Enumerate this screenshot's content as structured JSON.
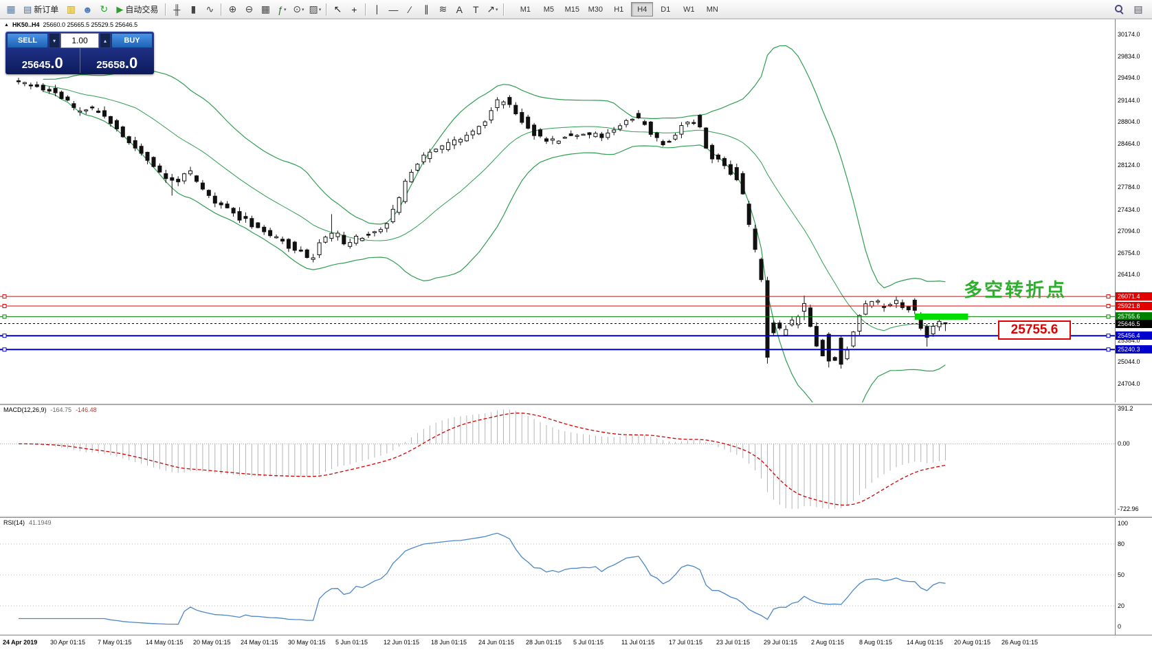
{
  "toolbar": {
    "items": [
      {
        "type": "icon",
        "name": "chart-window-icon",
        "glyph": "▦",
        "color": "#4a7ebb"
      },
      {
        "type": "button",
        "name": "new-order-button",
        "glyph": "▤",
        "color": "#3f6fb5",
        "label": "新订单"
      },
      {
        "type": "icon",
        "name": "chart-profiles-icon",
        "glyph": "▥",
        "color": "#d4a017"
      },
      {
        "type": "icon",
        "name": "profile-icon",
        "glyph": "☻",
        "color": "#4a7ebb"
      },
      {
        "type": "icon",
        "name": "refresh-icon",
        "glyph": "↻",
        "color": "#2f9e2f"
      },
      {
        "type": "button",
        "name": "autotrading-button",
        "glyph": "▶",
        "color": "#2f9e2f",
        "label": "自动交易"
      },
      {
        "type": "sep"
      },
      {
        "type": "icon",
        "name": "bar-chart-icon",
        "glyph": "╫",
        "color": "#444444"
      },
      {
        "type": "icon",
        "name": "candlestick-chart-icon",
        "glyph": "▮",
        "color": "#444444"
      },
      {
        "type": "icon",
        "name": "line-chart-icon",
        "glyph": "∿",
        "color": "#444444"
      },
      {
        "type": "sep"
      },
      {
        "type": "icon",
        "name": "zoom-in-icon",
        "glyph": "⊕",
        "color": "#444444"
      },
      {
        "type": "icon",
        "name": "zoom-out-icon",
        "glyph": "⊖",
        "color": "#444444"
      },
      {
        "type": "icon",
        "name": "tile-windows-icon",
        "glyph": "▦",
        "color": "#444444"
      },
      {
        "type": "icon",
        "name": "indicators-icon",
        "glyph": "ƒ",
        "color": "#2f6e2f",
        "dropdown": true
      },
      {
        "type": "icon",
        "name": "periods-icon",
        "glyph": "⊙",
        "color": "#444444",
        "dropdown": true
      },
      {
        "type": "icon",
        "name": "templates-icon",
        "glyph": "▨",
        "color": "#444444",
        "dropdown": true
      },
      {
        "type": "sep"
      },
      {
        "type": "icon",
        "name": "cursor-icon",
        "glyph": "↖",
        "color": "#222222"
      },
      {
        "type": "icon",
        "name": "crosshair-icon",
        "glyph": "+",
        "color": "#222222"
      },
      {
        "type": "sep"
      },
      {
        "type": "icon",
        "name": "vertical-line-icon",
        "glyph": "∣",
        "color": "#333333"
      },
      {
        "type": "icon",
        "name": "horizontal-line-icon",
        "glyph": "—",
        "color": "#333333"
      },
      {
        "type": "icon",
        "name": "trendline-icon",
        "glyph": "∕",
        "color": "#333333"
      },
      {
        "type": "icon",
        "name": "channel-icon",
        "glyph": "∥",
        "color": "#333333"
      },
      {
        "type": "icon",
        "name": "fibonacci-icon",
        "glyph": "≋",
        "color": "#333333"
      },
      {
        "type": "icon",
        "name": "text-icon",
        "glyph": "A",
        "color": "#333333"
      },
      {
        "type": "icon",
        "name": "text-label-icon",
        "glyph": "T",
        "color": "#333333"
      },
      {
        "type": "icon",
        "name": "arrows-icon",
        "glyph": "↗",
        "color": "#333333",
        "dropdown": true
      },
      {
        "type": "sep"
      }
    ],
    "timeframes": [
      "M1",
      "M5",
      "M15",
      "M30",
      "H1",
      "H4",
      "D1",
      "W1",
      "MN"
    ],
    "active_timeframe": "H4",
    "right_icons": [
      {
        "type": "search",
        "name": "search-icon"
      },
      {
        "type": "icon",
        "name": "market-watch-icon",
        "glyph": "▤",
        "color": "#4a4a7a"
      }
    ]
  },
  "chart": {
    "symbol_marker": "▲",
    "symbol_period": "HK50..H4",
    "ohlc_text": "25660.0 25665.5 25529.5 25646.5",
    "annotation": "多空转折点",
    "callout": "25755.6",
    "annotation_color": "#2fae2f",
    "callout_color": "#e00000",
    "y_axis_ticks": [
      {
        "price": 30174.0,
        "label": "30174.0"
      },
      {
        "price": 29834.0,
        "label": "29834.0"
      },
      {
        "price": 29494.0,
        "label": "29494.0"
      },
      {
        "price": 29144.0,
        "label": "29144.0"
      },
      {
        "price": 28804.0,
        "label": "28804.0"
      },
      {
        "price": 28464.0,
        "label": "28464.0"
      },
      {
        "price": 28124.0,
        "label": "28124.0"
      },
      {
        "price": 27784.0,
        "label": "27784.0"
      },
      {
        "price": 27434.0,
        "label": "27434.0"
      },
      {
        "price": 27094.0,
        "label": "27094.0"
      },
      {
        "price": 26754.0,
        "label": "26754.0"
      },
      {
        "price": 26414.0,
        "label": "26414.0"
      },
      {
        "price": 25384.0,
        "label": "25384.0"
      },
      {
        "price": 25044.0,
        "label": "25044.0"
      },
      {
        "price": 24704.0,
        "label": "24704.0"
      }
    ],
    "levels": [
      {
        "price": 26071.4,
        "label": "26071.4",
        "color": "#e00000",
        "width": 1
      },
      {
        "price": 25921.8,
        "label": "25921.8",
        "color": "#e00000",
        "width": 1
      },
      {
        "price": 25755.6,
        "label": "25755.6",
        "color": "#008000",
        "width": 1
      },
      {
        "price": 25646.5,
        "label": "25646.5",
        "color": "#000000",
        "width": 1,
        "dashed": true,
        "current": true
      },
      {
        "price": 25456.4,
        "label": "25456.4",
        "color": "#0000cc",
        "width": 2
      },
      {
        "price": 25240.3,
        "label": "25240.3",
        "color": "#0000cc",
        "width": 2
      }
    ]
  },
  "trade": {
    "sell_label": "SELL",
    "buy_label": "BUY",
    "volume": "1.00",
    "sell_main": "25645",
    "sell_dec": ".0",
    "buy_main": "25658",
    "buy_dec": ".0"
  },
  "macd": {
    "title": "MACD(12,26,9)",
    "value_main": "-164.75",
    "value_signal": "-146.48",
    "scale": [
      {
        "v": 391.2,
        "label": "391.2"
      },
      {
        "v": 0,
        "label": "0.00"
      },
      {
        "v": -722.96,
        "label": "-722.96"
      }
    ]
  },
  "rsi": {
    "title": "RSI(14)",
    "value": "41.1949",
    "scale": [
      {
        "v": 100,
        "label": "100"
      },
      {
        "v": 80,
        "label": "80"
      },
      {
        "v": 50,
        "label": "50"
      },
      {
        "v": 20,
        "label": "20"
      },
      {
        "v": 0,
        "label": "0"
      }
    ],
    "grid_levels": [
      80,
      50,
      20
    ]
  },
  "x_axis": {
    "labels": [
      "24 Apr 2019",
      "30 Apr 01:15",
      "7 May 01:15",
      "14 May 01:15",
      "20 May 01:15",
      "24 May 01:15",
      "30 May 01:15",
      "5 Jun 01:15",
      "12 Jun 01:15",
      "18 Jun 01:15",
      "24 Jun 01:15",
      "28 Jun 01:15",
      "5 Jul 01:15",
      "11 Jul 01:15",
      "17 Jul 01:15",
      "23 Jul 01:15",
      "29 Jul 01:15",
      "2 Aug 01:15",
      "8 Aug 01:15",
      "14 Aug 01:15",
      "20 Aug 01:15",
      "26 Aug 01:15"
    ]
  },
  "chart_data": {
    "type": "candlestick",
    "symbol": "HK50",
    "timeframe": "H4",
    "title": "HK50..H4",
    "last_ohlc": {
      "open": 25660.0,
      "high": 25665.5,
      "low": 25529.5,
      "close": 25646.5
    },
    "bid": 25645.0,
    "ask": 25658.0,
    "ylim": [
      24414,
      30411
    ],
    "candle_count": 152,
    "price_anchors": [
      [
        0,
        29440
      ],
      [
        2,
        29380
      ],
      [
        4,
        29350
      ],
      [
        6,
        29280
      ],
      [
        8,
        29150
      ],
      [
        10,
        28980
      ],
      [
        12,
        29030
      ],
      [
        14,
        28930
      ],
      [
        16,
        28750
      ],
      [
        18,
        28520
      ],
      [
        20,
        28350
      ],
      [
        22,
        28180
      ],
      [
        24,
        27950
      ],
      [
        26,
        27880
      ],
      [
        28,
        28020
      ],
      [
        30,
        27800
      ],
      [
        32,
        27600
      ],
      [
        34,
        27480
      ],
      [
        36,
        27350
      ],
      [
        38,
        27240
      ],
      [
        40,
        27130
      ],
      [
        42,
        27010
      ],
      [
        44,
        26910
      ],
      [
        46,
        26780
      ],
      [
        48,
        26680
      ],
      [
        50,
        26950
      ],
      [
        52,
        27020
      ],
      [
        54,
        26900
      ],
      [
        56,
        26980
      ],
      [
        58,
        27060
      ],
      [
        60,
        27180
      ],
      [
        62,
        27500
      ],
      [
        64,
        27950
      ],
      [
        66,
        28220
      ],
      [
        68,
        28350
      ],
      [
        70,
        28440
      ],
      [
        72,
        28520
      ],
      [
        74,
        28620
      ],
      [
        76,
        28760
      ],
      [
        78,
        29070
      ],
      [
        80,
        29130
      ],
      [
        82,
        28890
      ],
      [
        84,
        28690
      ],
      [
        86,
        28540
      ],
      [
        88,
        28500
      ],
      [
        90,
        28590
      ],
      [
        92,
        28630
      ],
      [
        94,
        28610
      ],
      [
        96,
        28600
      ],
      [
        98,
        28710
      ],
      [
        100,
        28840
      ],
      [
        101,
        28890
      ],
      [
        103,
        28690
      ],
      [
        105,
        28470
      ],
      [
        107,
        28560
      ],
      [
        109,
        28790
      ],
      [
        111,
        28810
      ],
      [
        113,
        28330
      ],
      [
        115,
        28160
      ],
      [
        117,
        27980
      ],
      [
        118,
        27850
      ],
      [
        119,
        27350
      ],
      [
        120,
        26950
      ],
      [
        121,
        26500
      ],
      [
        122,
        25850
      ],
      [
        123,
        25560
      ],
      [
        124,
        25610
      ],
      [
        125,
        25510
      ],
      [
        126,
        25660
      ],
      [
        127,
        25710
      ],
      [
        128,
        25940
      ],
      [
        129,
        25750
      ],
      [
        130,
        25460
      ],
      [
        131,
        25260
      ],
      [
        132,
        25160
      ],
      [
        133,
        25110
      ],
      [
        134,
        25210
      ],
      [
        135,
        25160
      ],
      [
        136,
        25410
      ],
      [
        137,
        25660
      ],
      [
        138,
        25860
      ],
      [
        139,
        25950
      ],
      [
        140,
        25980
      ],
      [
        141,
        25920
      ],
      [
        142,
        25960
      ],
      [
        143,
        26000
      ],
      [
        144,
        25950
      ],
      [
        145,
        25900
      ],
      [
        146,
        25930
      ],
      [
        147,
        25700
      ],
      [
        148,
        25450
      ],
      [
        149,
        25560
      ],
      [
        150,
        25640
      ],
      [
        151,
        25646
      ]
    ],
    "candle_overrides": [
      [
        25,
        27930,
        27990,
        27650,
        27890
      ],
      [
        51,
        26980,
        27360,
        26930,
        27060
      ],
      [
        122,
        26320,
        26380,
        25020,
        25120
      ],
      [
        128,
        25840,
        26085,
        25700,
        25960
      ],
      [
        132,
        25480,
        25510,
        24960,
        25060
      ],
      [
        134,
        25420,
        25460,
        24940,
        25010
      ],
      [
        143,
        25960,
        26072,
        25890,
        26010
      ],
      [
        148,
        25600,
        25640,
        25285,
        25430
      ]
    ],
    "indicators": {
      "bollinger": {
        "period": 20,
        "deviation": 2,
        "color": "#2e9e4f"
      },
      "macd": {
        "fast": 12,
        "slow": 26,
        "signal": 9,
        "value": -164.75,
        "signal_value": -146.48
      },
      "rsi": {
        "period": 14,
        "value": 41.1949
      }
    },
    "highlight": {
      "price": 25755.6,
      "from_idx": 146,
      "to_idx": 154.7,
      "color": "#00dd00"
    }
  }
}
